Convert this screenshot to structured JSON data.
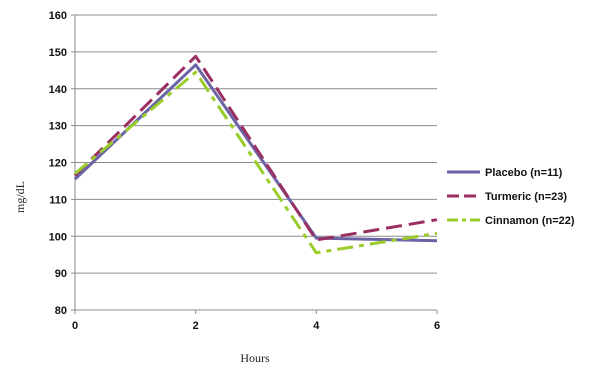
{
  "chart_data": {
    "type": "line",
    "xlabel": "Hours",
    "ylabel": "mg/dL",
    "x": [
      0,
      2,
      4,
      6
    ],
    "xlim": [
      0,
      6
    ],
    "xticks": [
      "0",
      "2",
      "4",
      "6"
    ],
    "ylim": [
      80,
      160
    ],
    "yticks": [
      "80",
      "90",
      "100",
      "110",
      "120",
      "130",
      "140",
      "150",
      "160"
    ],
    "grid": "horizontal",
    "legend_position": "right",
    "series": [
      {
        "name": "Placebo (n=11)",
        "values": [
          115.5,
          146.5,
          99.5,
          98.8
        ],
        "color": "#6a64a6",
        "dash": "solid"
      },
      {
        "name": "Turmeric (n=23)",
        "values": [
          116.5,
          148.8,
          99.0,
          104.5
        ],
        "color": "#9b2f62",
        "dash": "long-dash"
      },
      {
        "name": "Cinnamon (n=22)",
        "values": [
          117.0,
          144.5,
          95.5,
          100.8
        ],
        "color": "#9acd2a",
        "dash": "dash-dot"
      }
    ]
  }
}
